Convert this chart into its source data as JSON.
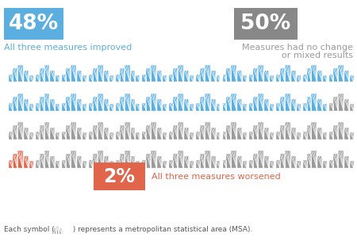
{
  "title_pct_blue": "48%",
  "title_label_blue": "All three measures improved",
  "title_pct_gray": "50%",
  "title_label_gray_line1": "Measures had no change",
  "title_label_gray_line2": "or mixed results",
  "title_pct_red": "2%",
  "title_label_red": "All three measures worsened",
  "footer": "Each symbol (        ) represents a metropolitan statistical area (MSA).",
  "color_blue": "#5AAFE0",
  "color_gray": "#9B9B9B",
  "color_red": "#E0654A",
  "color_blue_bg": "#5AAFE0",
  "color_gray_bg": "#888888",
  "color_red_bg": "#E0654A",
  "n_cols": 13,
  "n_rows": 4,
  "icon_colors_per_row": [
    [
      "blue",
      "blue",
      "blue",
      "blue",
      "blue",
      "blue",
      "blue",
      "blue",
      "blue",
      "blue",
      "blue",
      "blue",
      "blue"
    ],
    [
      "blue",
      "blue",
      "blue",
      "blue",
      "blue",
      "blue",
      "blue",
      "blue",
      "blue",
      "blue",
      "blue",
      "blue",
      "gray"
    ],
    [
      "gray",
      "gray",
      "gray",
      "gray",
      "gray",
      "gray",
      "gray",
      "gray",
      "gray",
      "gray",
      "gray",
      "gray",
      "gray"
    ],
    [
      "red",
      "gray",
      "gray",
      "gray",
      "gray",
      "gray",
      "gray",
      "gray",
      "gray",
      "gray",
      "gray",
      "gray",
      "gray"
    ]
  ]
}
